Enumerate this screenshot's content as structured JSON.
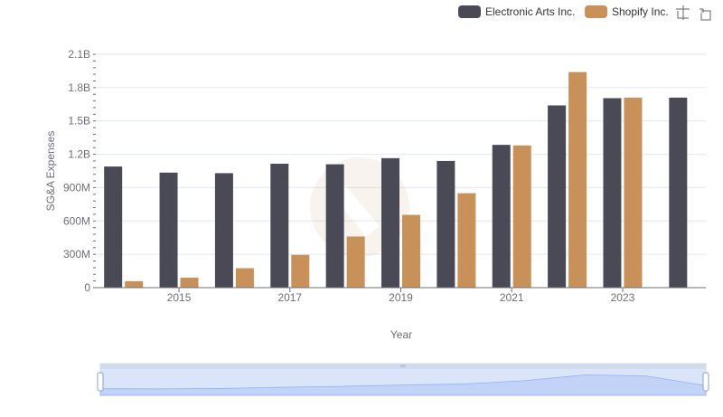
{
  "chart_data": {
    "type": "bar",
    "xlabel": "Year",
    "ylabel": "SG&A Expenses",
    "categories": [
      "2014",
      "2015",
      "2016",
      "2017",
      "2018",
      "2019",
      "2020",
      "2021",
      "2022",
      "2023",
      "2024"
    ],
    "x_tick_labels": [
      "2015",
      "2017",
      "2019",
      "2021",
      "2023"
    ],
    "y_ticks": [
      0,
      300000000,
      600000000,
      900000000,
      1200000000,
      1500000000,
      1800000000,
      2100000000
    ],
    "y_tick_labels": [
      "0",
      "300M",
      "600M",
      "900M",
      "1.2B",
      "1.5B",
      "1.8B",
      "2.1B"
    ],
    "ylim": [
      0,
      2100000000
    ],
    "grid": true,
    "legend_position": "top-right",
    "series": [
      {
        "name": "Electronic Arts Inc.",
        "color": "#4a4a57",
        "values": [
          1090000000,
          1035000000,
          1030000000,
          1115000000,
          1110000000,
          1165000000,
          1140000000,
          1285000000,
          1640000000,
          1705000000,
          1710000000
        ]
      },
      {
        "name": "Shopify Inc.",
        "color": "#c8915a",
        "values": [
          58000000,
          90000000,
          175000000,
          295000000,
          460000000,
          655000000,
          850000000,
          1280000000,
          1940000000,
          1710000000,
          null
        ]
      }
    ]
  },
  "toolbar": {
    "icons": [
      "zoom-icon",
      "restore-icon"
    ]
  }
}
